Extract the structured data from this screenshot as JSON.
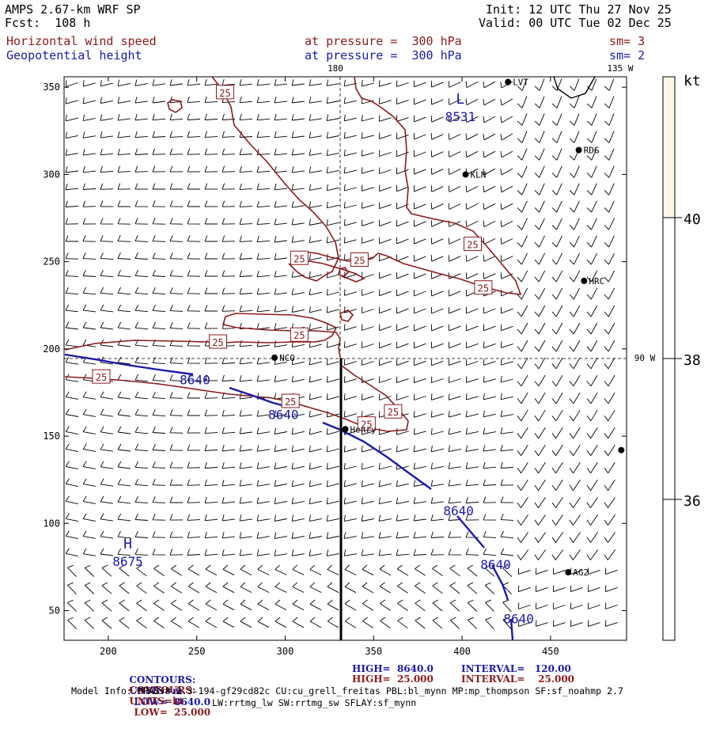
{
  "header": {
    "model": "AMPS 2.67-km WRF SP",
    "fcst": "Fcst:  108 h",
    "init": "Init: 12 UTC Thu 27 Nov 25",
    "valid": "Valid: 00 UTC Tue 02 Dec 25",
    "field1_name": "Horizontal wind speed",
    "field1_level": "at pressure =  300 hPa",
    "field1_sm": "sm= 3",
    "field2_name": "Geopotential height",
    "field2_level": "at pressure =  300 hPa",
    "field2_sm": "sm= 2"
  },
  "colors": {
    "height_contour": "#1a1aa8",
    "speed_contour": "#8b1a1a",
    "colorbar_top": "#fbf8e6"
  },
  "map_labels": {
    "lon_180": "180",
    "lon_135w": "135 W",
    "lon_90w": "90 W"
  },
  "axes": {
    "x_ticks": [
      200,
      250,
      300,
      350,
      400,
      450
    ],
    "y_ticks": [
      50,
      100,
      150,
      200,
      250,
      300,
      350
    ],
    "xlim": [
      175,
      493
    ],
    "ylim": [
      33,
      356
    ]
  },
  "stations": [
    {
      "name": "LVT",
      "x": 426,
      "y": 353
    },
    {
      "name": "RDG",
      "x": 466,
      "y": 314
    },
    {
      "name": "KLN",
      "x": 402,
      "y": 300
    },
    {
      "name": "HRC",
      "x": 469,
      "y": 239
    },
    {
      "name": "NCO",
      "x": 294,
      "y": 195
    },
    {
      "name": "Henry",
      "x": 334,
      "y": 154
    },
    {
      "name": "AG2",
      "x": 460,
      "y": 72
    },
    {
      "name": "",
      "x": 490,
      "y": 142
    }
  ],
  "extrema": [
    {
      "symbol": "L",
      "value": "8531",
      "x": 399,
      "y": 337
    },
    {
      "symbol": "H",
      "value": "8675",
      "x": 211,
      "y": 82
    }
  ],
  "height_labels": [
    {
      "text": "8640",
      "x": 249,
      "y": 182
    },
    {
      "text": "8640",
      "x": 299,
      "y": 162
    },
    {
      "text": "8640",
      "x": 398,
      "y": 107
    },
    {
      "text": "8640",
      "x": 419,
      "y": 76
    },
    {
      "text": "8640",
      "x": 432,
      "y": 45
    }
  ],
  "speed_labels": [
    {
      "text": "25",
      "x": 266,
      "y": 347
    },
    {
      "text": "25",
      "x": 406,
      "y": 260
    },
    {
      "text": "25",
      "x": 342,
      "y": 251
    },
    {
      "text": "25",
      "x": 308,
      "y": 252
    },
    {
      "text": "25",
      "x": 412,
      "y": 235
    },
    {
      "text": "25",
      "x": 308,
      "y": 208
    },
    {
      "text": "25",
      "x": 262,
      "y": 204
    },
    {
      "text": "25",
      "x": 196,
      "y": 184
    },
    {
      "text": "25",
      "x": 303,
      "y": 170
    },
    {
      "text": "25",
      "x": 361,
      "y": 164
    },
    {
      "text": "25",
      "x": 346,
      "y": 157
    }
  ],
  "colorbar": {
    "unit": "kt",
    "labels": [
      "40",
      "38",
      "36"
    ]
  },
  "footer": {
    "line1_label": "CONTOURS:",
    "line1_units": "UNITS=m",
    "line1_low": "LOW=  8640.0",
    "line1_high": "HIGH=  8640.0",
    "line1_interval": "INTERVAL=   120.00",
    "line2_label": "CONTOURS:",
    "line2_units": "UNITS=kt",
    "line2_low": "LOW=  25.000",
    "line2_high": "HIGH=  25.000",
    "line2_interval": "INTERVAL=    25.000",
    "model_info": "Model Info: MPASv8.2.3-194-gf29cd82c CU:cu_grell_freitas PBL:bl_mynn MP:mp_thompson SF:sf_noahmp 2.7",
    "model_info2": "LW:rrtmg_lw SW:rrtmg_sw SFLAY:sf_mynn"
  }
}
